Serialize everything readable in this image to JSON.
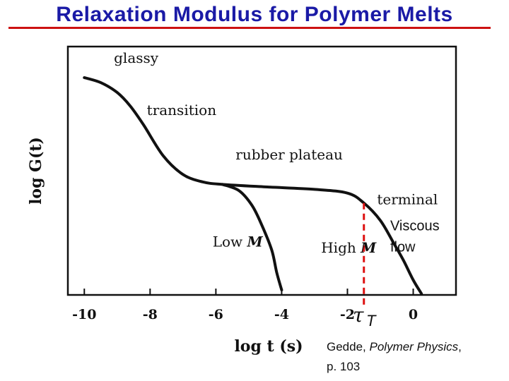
{
  "slide": {
    "title": "Relaxation Modulus for Polymer Melts"
  },
  "citation": {
    "author": "Gedde, ",
    "book": "Polymer Physics",
    "sep": ",",
    "page": "p. 103"
  },
  "colors": {
    "title": "#1a1aa6",
    "title_rule": "#cc1111",
    "tau_marker": "#dd1111",
    "curve": "#111111"
  },
  "chart_data": {
    "type": "line",
    "title": "",
    "xlabel": "log t (s)",
    "ylabel": "log G(t)",
    "xlim": [
      -10.5,
      1.3
    ],
    "ylim": [
      0,
      10
    ],
    "xticks": [
      -10,
      -8,
      -6,
      -4,
      -2,
      0
    ],
    "xtick_labels": [
      "-10",
      "-8",
      "-6",
      "-4",
      "-2",
      "0"
    ],
    "yticks": false,
    "grid": false,
    "legend": "none",
    "series": [
      {
        "name": "High M",
        "x": [
          -10.0,
          -9.5,
          -9.0,
          -8.6,
          -8.2,
          -7.6,
          -7.0,
          -6.4,
          -5.8,
          -4.5,
          -3.0,
          -2.0,
          -1.5,
          -1.0,
          -0.6,
          -0.3,
          0.0,
          0.25
        ],
        "y": [
          8.75,
          8.55,
          8.15,
          7.6,
          6.85,
          5.6,
          4.85,
          4.55,
          4.45,
          4.35,
          4.25,
          4.1,
          3.7,
          3.0,
          2.1,
          1.4,
          0.6,
          0.05
        ]
      },
      {
        "name": "Low M",
        "x": [
          -5.8,
          -5.3,
          -4.9,
          -4.6,
          -4.3,
          -4.15,
          -4.0
        ],
        "y": [
          4.45,
          4.2,
          3.6,
          2.8,
          1.8,
          0.9,
          0.2
        ]
      }
    ],
    "annotations": [
      {
        "text": "glassy",
        "x": -9.1,
        "y": 9.35
      },
      {
        "text": "transition",
        "x": -8.1,
        "y": 7.25
      },
      {
        "text": "rubber plateau",
        "x": -5.4,
        "y": 5.45
      },
      {
        "text": "terminal",
        "x": -1.1,
        "y": 3.65
      },
      {
        "text": "Low M",
        "x": -6.1,
        "y": 1.95
      },
      {
        "text": "High M",
        "x": -2.8,
        "y": 1.7
      },
      {
        "text": "Viscous",
        "x": -0.7,
        "y": 2.6
      },
      {
        "text": "flow",
        "x": -0.7,
        "y": 1.75
      }
    ],
    "tau_marker": {
      "symbol": "τ",
      "subscript": "T",
      "x": -1.5,
      "y_top": 3.7
    }
  }
}
